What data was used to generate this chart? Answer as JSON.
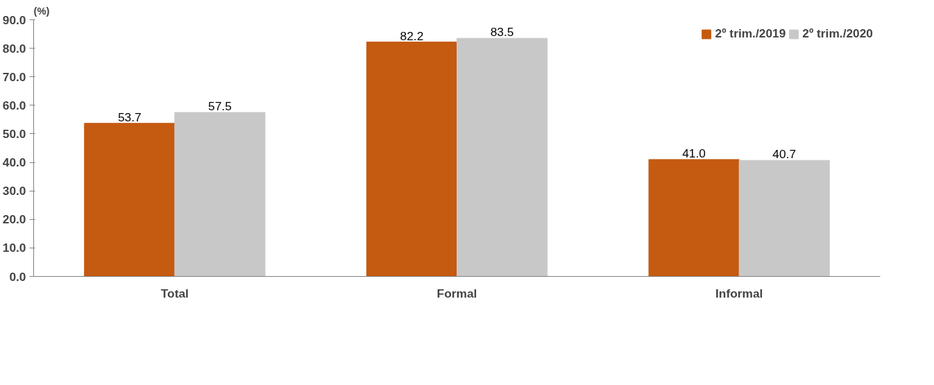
{
  "chart_data": {
    "type": "bar",
    "ylabel": "(%)",
    "categories": [
      "Total",
      "Formal",
      "Informal"
    ],
    "series": [
      {
        "name": "2º trim./2019",
        "color": "#c55a11",
        "values": [
          53.7,
          82.2,
          41.0
        ],
        "value_labels": [
          "53.7",
          "82.2",
          "41.0"
        ]
      },
      {
        "name": "2º trim./2020",
        "color": "#c8c8c8",
        "values": [
          57.5,
          83.5,
          40.7
        ],
        "value_labels": [
          "57.5",
          "83.5",
          "40.7"
        ]
      }
    ],
    "ylim": [
      0,
      90
    ],
    "yticks": [
      {
        "value": 0,
        "label": "0.0"
      },
      {
        "value": 10,
        "label": "10.0"
      },
      {
        "value": 20,
        "label": "20.0"
      },
      {
        "value": 30,
        "label": "30.0"
      },
      {
        "value": 40,
        "label": "40.0"
      },
      {
        "value": 50,
        "label": "50.0"
      },
      {
        "value": 60,
        "label": "60.0"
      },
      {
        "value": 70,
        "label": "70.0"
      },
      {
        "value": 80,
        "label": "80.0"
      },
      {
        "value": 90,
        "label": "90.0"
      }
    ],
    "grid": false,
    "legend": "top right"
  }
}
